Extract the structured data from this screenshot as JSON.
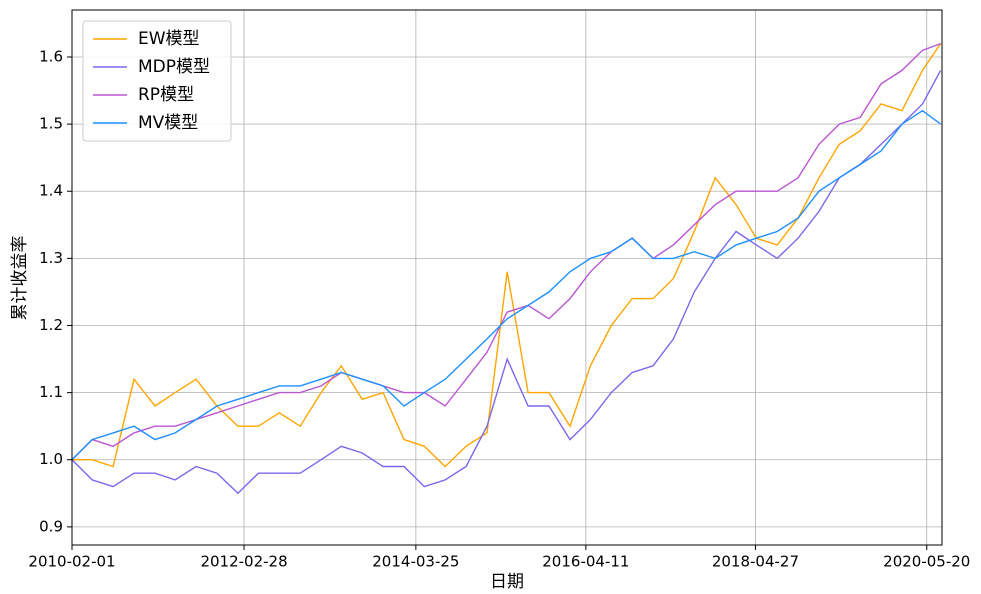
{
  "chart_data": {
    "type": "line",
    "xlabel": "日期",
    "ylabel": "累计收益率",
    "x": [
      "2010-02-01",
      "2010-05-01",
      "2010-08-01",
      "2010-11-01",
      "2011-02-01",
      "2011-05-01",
      "2011-08-01",
      "2011-11-01",
      "2012-02-01",
      "2012-05-01",
      "2012-08-01",
      "2012-11-01",
      "2013-02-01",
      "2013-05-01",
      "2013-08-01",
      "2013-11-01",
      "2014-02-01",
      "2014-05-01",
      "2014-08-01",
      "2014-11-01",
      "2015-02-01",
      "2015-05-01",
      "2015-08-01",
      "2015-11-01",
      "2016-02-01",
      "2016-05-01",
      "2016-08-01",
      "2016-11-01",
      "2017-02-01",
      "2017-05-01",
      "2017-08-01",
      "2017-11-01",
      "2018-02-01",
      "2018-05-01",
      "2018-08-01",
      "2018-11-01",
      "2019-02-01",
      "2019-05-01",
      "2019-08-01",
      "2019-11-01",
      "2020-02-01",
      "2020-05-01",
      "2020-07-20"
    ],
    "series": [
      {
        "name": "EW模型",
        "color": "#ffa500",
        "values": [
          1.0,
          1.0,
          0.99,
          1.12,
          1.08,
          1.1,
          1.12,
          1.08,
          1.05,
          1.05,
          1.07,
          1.05,
          1.1,
          1.14,
          1.09,
          1.1,
          1.03,
          1.02,
          0.99,
          1.02,
          1.04,
          1.28,
          1.1,
          1.1,
          1.05,
          1.14,
          1.2,
          1.24,
          1.24,
          1.27,
          1.34,
          1.42,
          1.38,
          1.33,
          1.32,
          1.36,
          1.42,
          1.47,
          1.49,
          1.53,
          1.52,
          1.58,
          1.62
        ]
      },
      {
        "name": "MDP模型",
        "color": "#7b68ee",
        "values": [
          1.0,
          0.97,
          0.96,
          0.98,
          0.98,
          0.97,
          0.99,
          0.98,
          0.95,
          0.98,
          0.98,
          0.98,
          1.0,
          1.02,
          1.01,
          0.99,
          0.99,
          0.96,
          0.97,
          0.99,
          1.05,
          1.15,
          1.08,
          1.08,
          1.03,
          1.06,
          1.1,
          1.13,
          1.14,
          1.18,
          1.25,
          1.3,
          1.34,
          1.32,
          1.3,
          1.33,
          1.37,
          1.42,
          1.44,
          1.47,
          1.5,
          1.53,
          1.58
        ]
      },
      {
        "name": "RP模型",
        "color": "#ba55d3",
        "values": [
          1.0,
          1.03,
          1.02,
          1.04,
          1.05,
          1.05,
          1.06,
          1.07,
          1.08,
          1.09,
          1.1,
          1.1,
          1.11,
          1.13,
          1.12,
          1.11,
          1.1,
          1.1,
          1.08,
          1.12,
          1.16,
          1.22,
          1.23,
          1.21,
          1.24,
          1.28,
          1.31,
          1.33,
          1.3,
          1.32,
          1.35,
          1.38,
          1.4,
          1.4,
          1.4,
          1.42,
          1.47,
          1.5,
          1.51,
          1.56,
          1.58,
          1.61,
          1.62
        ]
      },
      {
        "name": "MV模型",
        "color": "#1e90ff",
        "values": [
          1.0,
          1.03,
          1.04,
          1.05,
          1.03,
          1.04,
          1.06,
          1.08,
          1.09,
          1.1,
          1.11,
          1.11,
          1.12,
          1.13,
          1.12,
          1.11,
          1.08,
          1.1,
          1.12,
          1.15,
          1.18,
          1.21,
          1.23,
          1.25,
          1.28,
          1.3,
          1.31,
          1.33,
          1.3,
          1.3,
          1.31,
          1.3,
          1.32,
          1.33,
          1.34,
          1.36,
          1.4,
          1.42,
          1.44,
          1.46,
          1.5,
          1.52,
          1.5
        ]
      }
    ],
    "xlim": [
      "2010-02-01",
      "2020-07-26"
    ],
    "xticks": [
      "2010-02-01",
      "2012-02-28",
      "2014-03-25",
      "2016-04-11",
      "2018-04-27",
      "2020-05-20"
    ],
    "ylim": [
      0.873,
      1.67
    ],
    "yticks": [
      0.9,
      {
        "value": 1,
        "label": "1.0"
      },
      1.1,
      1.2,
      1.3,
      1.4,
      1.5,
      1.6
    ],
    "grid": true,
    "legend": "upper-left"
  }
}
